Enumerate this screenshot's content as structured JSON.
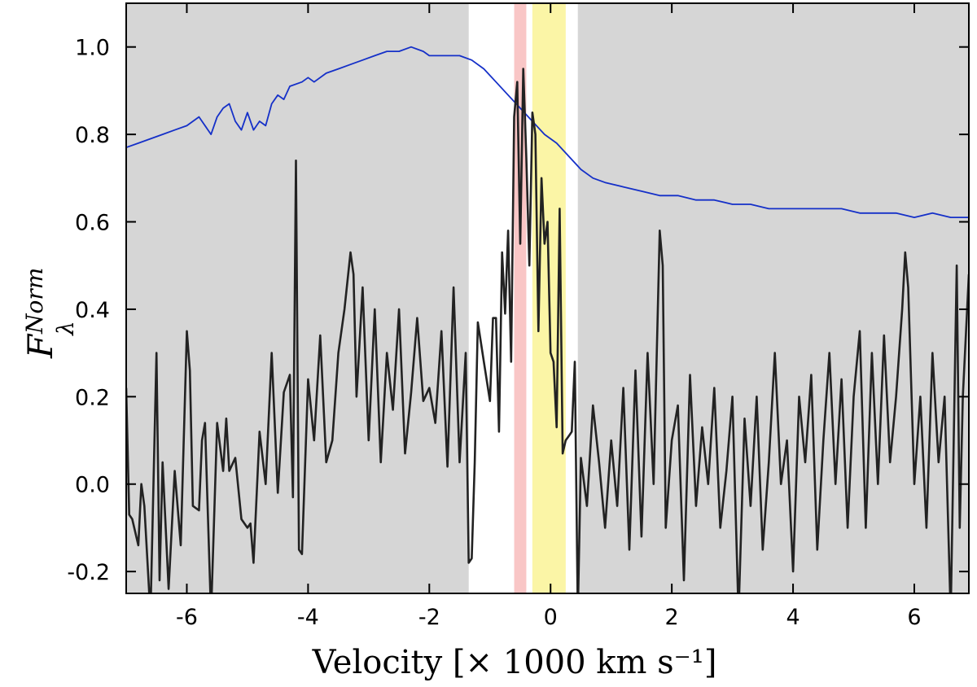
{
  "chart_data": {
    "type": "line",
    "xlabel": "Velocity [× 1000 km s⁻¹]",
    "ylabel": {
      "main": "F",
      "subscript": "λ",
      "superscript": "Norm"
    },
    "xlim": [
      -7.0,
      6.9
    ],
    "ylim": [
      -0.25,
      1.1
    ],
    "x_ticks": [
      -6,
      -4,
      -2,
      0,
      2,
      4,
      6
    ],
    "x_tick_labels": [
      "-6",
      "-4",
      "-2",
      "0",
      "2",
      "4",
      "6"
    ],
    "y_ticks": [
      -0.2,
      0.0,
      0.2,
      0.4,
      0.6,
      0.8,
      1.0
    ],
    "y_tick_labels": [
      "-0.2",
      "0.0",
      "0.2",
      "0.4",
      "0.6",
      "0.8",
      "1.0"
    ],
    "bands": [
      {
        "name": "shaded-left",
        "x": [
          -7.0,
          -1.35
        ],
        "color": "#d6d6d6"
      },
      {
        "name": "red-band",
        "x": [
          -0.6,
          -0.4
        ],
        "color": "#f9c6c6"
      },
      {
        "name": "yellow-band",
        "x": [
          -0.3,
          0.25
        ],
        "color": "#fbf5a6"
      },
      {
        "name": "shaded-right",
        "x": [
          0.45,
          6.9
        ],
        "color": "#d6d6d6"
      }
    ],
    "series": [
      {
        "name": "template-spectrum",
        "color": "#1530c8",
        "x": [
          -7.0,
          -6.8,
          -6.6,
          -6.4,
          -6.2,
          -6.0,
          -5.8,
          -5.6,
          -5.5,
          -5.4,
          -5.3,
          -5.2,
          -5.1,
          -5.0,
          -4.9,
          -4.8,
          -4.7,
          -4.6,
          -4.5,
          -4.4,
          -4.3,
          -4.1,
          -4.0,
          -3.9,
          -3.7,
          -3.5,
          -3.3,
          -3.1,
          -2.9,
          -2.7,
          -2.5,
          -2.3,
          -2.1,
          -2.0,
          -1.9,
          -1.7,
          -1.5,
          -1.3,
          -1.1,
          -0.9,
          -0.7,
          -0.5,
          -0.3,
          -0.1,
          0.1,
          0.3,
          0.5,
          0.7,
          0.9,
          1.2,
          1.5,
          1.8,
          2.1,
          2.4,
          2.7,
          3.0,
          3.3,
          3.6,
          3.9,
          4.2,
          4.5,
          4.8,
          5.1,
          5.4,
          5.7,
          6.0,
          6.3,
          6.6,
          6.9
        ],
        "y": [
          0.77,
          0.78,
          0.79,
          0.8,
          0.81,
          0.82,
          0.84,
          0.8,
          0.84,
          0.86,
          0.87,
          0.83,
          0.81,
          0.85,
          0.81,
          0.83,
          0.82,
          0.87,
          0.89,
          0.88,
          0.91,
          0.92,
          0.93,
          0.92,
          0.94,
          0.95,
          0.96,
          0.97,
          0.98,
          0.99,
          0.99,
          1.0,
          0.99,
          0.98,
          0.98,
          0.98,
          0.98,
          0.97,
          0.95,
          0.92,
          0.89,
          0.86,
          0.83,
          0.8,
          0.78,
          0.75,
          0.72,
          0.7,
          0.69,
          0.68,
          0.67,
          0.66,
          0.66,
          0.65,
          0.65,
          0.64,
          0.64,
          0.63,
          0.63,
          0.63,
          0.63,
          0.63,
          0.62,
          0.62,
          0.62,
          0.61,
          0.62,
          0.61,
          0.61
        ]
      },
      {
        "name": "observed-spectrum",
        "color": "#222222",
        "x": [
          -7.0,
          -6.95,
          -6.9,
          -6.8,
          -6.75,
          -6.7,
          -6.6,
          -6.5,
          -6.45,
          -6.4,
          -6.3,
          -6.2,
          -6.1,
          -6.0,
          -5.95,
          -5.9,
          -5.8,
          -5.75,
          -5.7,
          -5.6,
          -5.5,
          -5.4,
          -5.35,
          -5.3,
          -5.2,
          -5.1,
          -5.0,
          -4.95,
          -4.9,
          -4.8,
          -4.7,
          -4.6,
          -4.5,
          -4.4,
          -4.3,
          -4.25,
          -4.2,
          -4.15,
          -4.1,
          -4.0,
          -3.9,
          -3.8,
          -3.7,
          -3.6,
          -3.5,
          -3.4,
          -3.3,
          -3.25,
          -3.2,
          -3.1,
          -3.0,
          -2.9,
          -2.8,
          -2.7,
          -2.6,
          -2.5,
          -2.4,
          -2.3,
          -2.2,
          -2.1,
          -2.0,
          -1.9,
          -1.8,
          -1.7,
          -1.6,
          -1.5,
          -1.4,
          -1.35,
          -1.3,
          -1.25,
          -1.2,
          -1.1,
          -1.0,
          -0.95,
          -0.9,
          -0.85,
          -0.8,
          -0.75,
          -0.7,
          -0.65,
          -0.6,
          -0.55,
          -0.5,
          -0.45,
          -0.4,
          -0.35,
          -0.3,
          -0.25,
          -0.2,
          -0.15,
          -0.1,
          -0.05,
          0.0,
          0.05,
          0.1,
          0.15,
          0.2,
          0.25,
          0.3,
          0.35,
          0.4,
          0.45,
          0.5,
          0.6,
          0.7,
          0.8,
          0.9,
          1.0,
          1.1,
          1.2,
          1.3,
          1.4,
          1.5,
          1.6,
          1.7,
          1.8,
          1.85,
          1.9,
          2.0,
          2.1,
          2.2,
          2.3,
          2.4,
          2.5,
          2.6,
          2.7,
          2.8,
          2.9,
          3.0,
          3.1,
          3.2,
          3.3,
          3.4,
          3.5,
          3.6,
          3.7,
          3.8,
          3.9,
          4.0,
          4.1,
          4.2,
          4.3,
          4.4,
          4.5,
          4.6,
          4.7,
          4.8,
          4.9,
          5.0,
          5.1,
          5.2,
          5.3,
          5.4,
          5.5,
          5.6,
          5.7,
          5.8,
          5.85,
          5.9,
          6.0,
          6.1,
          6.2,
          6.3,
          6.4,
          6.5,
          6.6,
          6.7,
          6.75,
          6.8,
          6.9
        ],
        "y": [
          0.22,
          -0.07,
          -0.08,
          -0.14,
          0.0,
          -0.05,
          -0.3,
          0.3,
          -0.22,
          0.05,
          -0.24,
          0.03,
          -0.14,
          0.35,
          0.26,
          -0.05,
          -0.06,
          0.1,
          0.14,
          -0.3,
          0.14,
          0.03,
          0.15,
          0.03,
          0.06,
          -0.08,
          -0.1,
          -0.09,
          -0.18,
          0.12,
          0.0,
          0.3,
          -0.02,
          0.21,
          0.25,
          -0.03,
          0.74,
          -0.15,
          -0.16,
          0.24,
          0.1,
          0.34,
          0.05,
          0.1,
          0.3,
          0.4,
          0.53,
          0.48,
          0.2,
          0.45,
          0.1,
          0.4,
          0.05,
          0.3,
          0.17,
          0.4,
          0.07,
          0.21,
          0.38,
          0.19,
          0.22,
          0.14,
          0.35,
          0.04,
          0.45,
          0.05,
          0.3,
          -0.18,
          -0.17,
          0.05,
          0.37,
          0.28,
          0.19,
          0.38,
          0.38,
          0.12,
          0.53,
          0.39,
          0.58,
          0.28,
          0.84,
          0.92,
          0.55,
          0.95,
          0.75,
          0.5,
          0.85,
          0.8,
          0.35,
          0.7,
          0.55,
          0.6,
          0.3,
          0.28,
          0.13,
          0.63,
          0.07,
          0.1,
          0.11,
          0.12,
          0.28,
          -0.3,
          0.06,
          -0.05,
          0.18,
          0.05,
          -0.1,
          0.1,
          -0.05,
          0.22,
          -0.15,
          0.26,
          -0.12,
          0.3,
          0.0,
          0.58,
          0.5,
          -0.1,
          0.1,
          0.18,
          -0.22,
          0.25,
          -0.05,
          0.13,
          0.0,
          0.22,
          -0.1,
          0.03,
          0.2,
          -0.3,
          0.15,
          -0.05,
          0.2,
          -0.15,
          0.05,
          0.3,
          0.0,
          0.1,
          -0.2,
          0.2,
          0.05,
          0.25,
          -0.15,
          0.1,
          0.3,
          0.0,
          0.24,
          -0.1,
          0.2,
          0.35,
          -0.1,
          0.3,
          0.0,
          0.34,
          0.05,
          0.2,
          0.4,
          0.53,
          0.45,
          0.0,
          0.2,
          -0.1,
          0.3,
          0.05,
          0.2,
          -0.3,
          0.5,
          -0.1,
          0.2,
          0.48
        ]
      }
    ]
  }
}
